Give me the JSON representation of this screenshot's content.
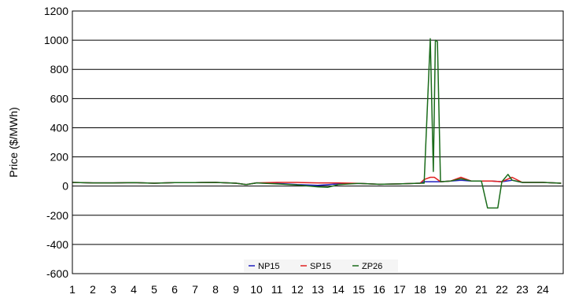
{
  "chart_data": {
    "type": "line",
    "title": "",
    "xlabel": "",
    "ylabel": "Price ($/MWh)",
    "ylim": [
      -600,
      1200
    ],
    "yticks": [
      -600,
      -400,
      -200,
      0,
      200,
      400,
      600,
      800,
      1000,
      1200
    ],
    "xlim": [
      1,
      25
    ],
    "xticks": [
      1,
      2,
      3,
      4,
      5,
      6,
      7,
      8,
      9,
      10,
      11,
      12,
      13,
      14,
      15,
      16,
      17,
      18,
      19,
      20,
      21,
      22,
      23,
      24
    ],
    "grid": "horizontal",
    "legend_position": "bottom-center",
    "series": [
      {
        "name": "NP15",
        "color": "#1f1fbf",
        "points": [
          [
            1,
            25
          ],
          [
            2,
            22
          ],
          [
            3,
            22
          ],
          [
            4,
            24
          ],
          [
            5,
            20
          ],
          [
            6,
            24
          ],
          [
            7,
            24
          ],
          [
            8,
            25
          ],
          [
            9,
            20
          ],
          [
            9.5,
            10
          ],
          [
            10,
            22
          ],
          [
            11,
            18
          ],
          [
            12,
            10
          ],
          [
            13,
            5
          ],
          [
            14,
            15
          ],
          [
            15,
            18
          ],
          [
            16,
            12
          ],
          [
            17,
            15
          ],
          [
            18,
            20
          ],
          [
            18.2,
            30
          ],
          [
            18.5,
            30
          ],
          [
            18.7,
            30
          ],
          [
            19,
            30
          ],
          [
            19.5,
            35
          ],
          [
            20,
            40
          ],
          [
            20.5,
            35
          ],
          [
            21,
            35
          ],
          [
            21.3,
            35
          ],
          [
            21.5,
            35
          ],
          [
            22,
            30
          ],
          [
            22.5,
            40
          ],
          [
            23,
            25
          ],
          [
            24,
            25
          ],
          [
            24.9,
            20
          ]
        ]
      },
      {
        "name": "SP15",
        "color": "#e02020",
        "points": [
          [
            1,
            25
          ],
          [
            2,
            22
          ],
          [
            3,
            22
          ],
          [
            4,
            24
          ],
          [
            5,
            20
          ],
          [
            6,
            24
          ],
          [
            7,
            24
          ],
          [
            8,
            25
          ],
          [
            9,
            20
          ],
          [
            9.5,
            10
          ],
          [
            10,
            22
          ],
          [
            11,
            25
          ],
          [
            12,
            25
          ],
          [
            13,
            22
          ],
          [
            14,
            22
          ],
          [
            15,
            18
          ],
          [
            16,
            12
          ],
          [
            17,
            15
          ],
          [
            18,
            20
          ],
          [
            18.2,
            45
          ],
          [
            18.5,
            60
          ],
          [
            18.7,
            60
          ],
          [
            19,
            30
          ],
          [
            19.5,
            35
          ],
          [
            20,
            60
          ],
          [
            20.5,
            35
          ],
          [
            21,
            35
          ],
          [
            21.3,
            35
          ],
          [
            21.5,
            35
          ],
          [
            22,
            30
          ],
          [
            22.5,
            60
          ],
          [
            23,
            25
          ],
          [
            24,
            25
          ],
          [
            24.9,
            20
          ]
        ]
      },
      {
        "name": "ZP26",
        "color": "#1a6b1a",
        "points": [
          [
            1,
            25
          ],
          [
            2,
            22
          ],
          [
            3,
            22
          ],
          [
            4,
            24
          ],
          [
            5,
            20
          ],
          [
            6,
            24
          ],
          [
            7,
            24
          ],
          [
            8,
            25
          ],
          [
            9,
            20
          ],
          [
            9.5,
            10
          ],
          [
            10,
            22
          ],
          [
            11,
            15
          ],
          [
            12,
            8
          ],
          [
            13,
            -5
          ],
          [
            13.5,
            -8
          ],
          [
            14,
            10
          ],
          [
            15,
            18
          ],
          [
            16,
            12
          ],
          [
            17,
            15
          ],
          [
            18,
            20
          ],
          [
            18.2,
            20
          ],
          [
            18.5,
            1010
          ],
          [
            18.65,
            100
          ],
          [
            18.75,
            1000
          ],
          [
            18.85,
            990
          ],
          [
            19,
            30
          ],
          [
            19.5,
            35
          ],
          [
            20,
            50
          ],
          [
            20.5,
            35
          ],
          [
            21,
            35
          ],
          [
            21.3,
            -150
          ],
          [
            21.5,
            -150
          ],
          [
            21.8,
            -150
          ],
          [
            22,
            30
          ],
          [
            22.3,
            80
          ],
          [
            22.5,
            40
          ],
          [
            23,
            25
          ],
          [
            24,
            25
          ],
          [
            24.9,
            20
          ]
        ]
      }
    ]
  }
}
